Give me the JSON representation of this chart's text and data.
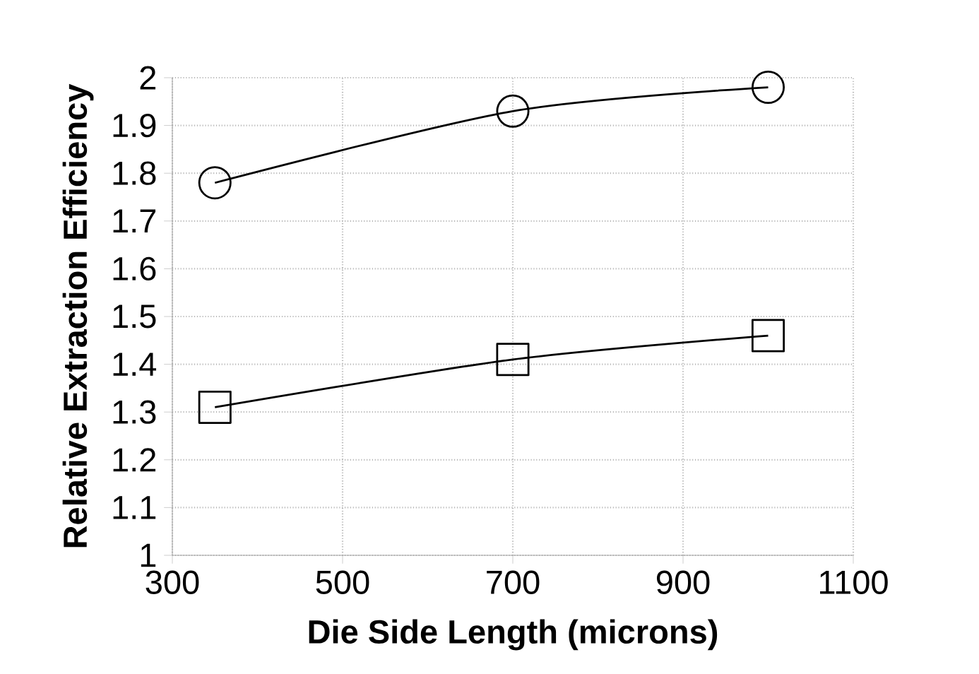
{
  "chart_data": {
    "type": "line",
    "xlabel": "Die Side Length (microns)",
    "ylabel": "Relative Extraction Efficiency",
    "xlim": [
      300,
      1100
    ],
    "xticks": [
      300,
      500,
      700,
      900,
      1100
    ],
    "ylim": [
      1,
      2
    ],
    "yticks": [
      1,
      1.1,
      1.2,
      1.3,
      1.4,
      1.5,
      1.6,
      1.7,
      1.8,
      1.9,
      2
    ],
    "grid": true,
    "line_style": "solid",
    "series": [
      {
        "color": "#000000",
        "marker": "circle",
        "x": [
          350,
          700,
          1000
        ],
        "values": [
          1.78,
          1.93,
          1.98
        ]
      },
      {
        "color": "#000000",
        "marker": "square",
        "x": [
          350,
          700,
          1000
        ],
        "values": [
          1.31,
          1.41,
          1.46
        ]
      }
    ]
  }
}
